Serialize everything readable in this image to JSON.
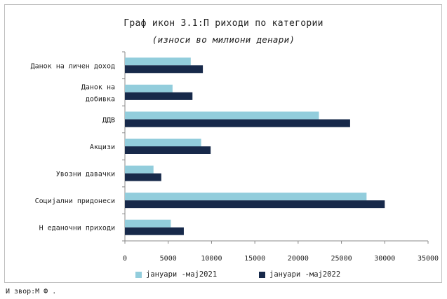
{
  "colors": {
    "series1": "#92cddc",
    "series2": "#17294a"
  },
  "chart_data": {
    "type": "bar",
    "orientation": "horizontal",
    "title": "Граф икон 3.1:П риходи по категории",
    "subtitle": "(износи во милиони денари)",
    "categories": [
      [
        "Данок на личен доход"
      ],
      [
        "Данок на",
        "добивка"
      ],
      [
        "ДДВ"
      ],
      [
        "Акцизи"
      ],
      [
        "Увозни давачки"
      ],
      [
        "Социјални придонеси"
      ],
      [
        "Н еданочни приходи"
      ]
    ],
    "series": [
      {
        "name": "јануари -мај2021",
        "values": [
          7600,
          5500,
          22400,
          8800,
          3300,
          27900,
          5300
        ]
      },
      {
        "name": "јануари -мај2022",
        "values": [
          9000,
          7800,
          26000,
          9900,
          4200,
          30000,
          6800
        ]
      }
    ],
    "xlim": [
      0,
      35000
    ],
    "xticks": [
      0,
      5000,
      10000,
      15000,
      20000,
      25000,
      30000,
      35000
    ],
    "grid": false,
    "legend_position": "bottom"
  },
  "source": "И звор:М Ф ."
}
